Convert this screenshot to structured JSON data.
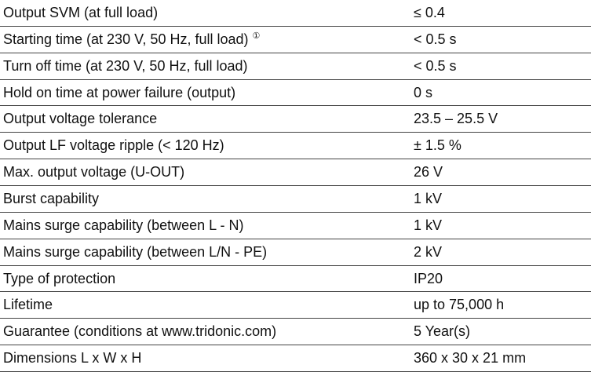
{
  "table": {
    "rows": [
      {
        "label": "Output SVM (at full load)",
        "value": "≤ 0.4"
      },
      {
        "label": "Starting time (at 230 V, 50 Hz, full load)",
        "note": "①",
        "value": "< 0.5 s"
      },
      {
        "label": "Turn off time (at 230 V, 50 Hz, full load)",
        "value": "< 0.5 s"
      },
      {
        "label": "Hold on time at power failure (output)",
        "value": "0 s"
      },
      {
        "label": "Output voltage tolerance",
        "value": "23.5 – 25.5 V"
      },
      {
        "label": "Output LF voltage ripple (< 120 Hz)",
        "value": "± 1.5 %"
      },
      {
        "label": "Max. output voltage (U-OUT)",
        "value": "26 V"
      },
      {
        "label": "Burst capability",
        "value": "1 kV"
      },
      {
        "label": "Mains surge capability (between L - N)",
        "value": "1 kV"
      },
      {
        "label": "Mains surge capability (between L/N - PE)",
        "value": "2 kV"
      },
      {
        "label": "Type of protection",
        "value": "IP20"
      },
      {
        "label": "Lifetime",
        "value": "up to 75,000 h"
      },
      {
        "label": "Guarantee (conditions at www.tridonic.com)",
        "value": "5 Year(s)"
      },
      {
        "label": "Dimensions L x W x H",
        "value": "360 x 30 x 21 mm"
      }
    ]
  }
}
